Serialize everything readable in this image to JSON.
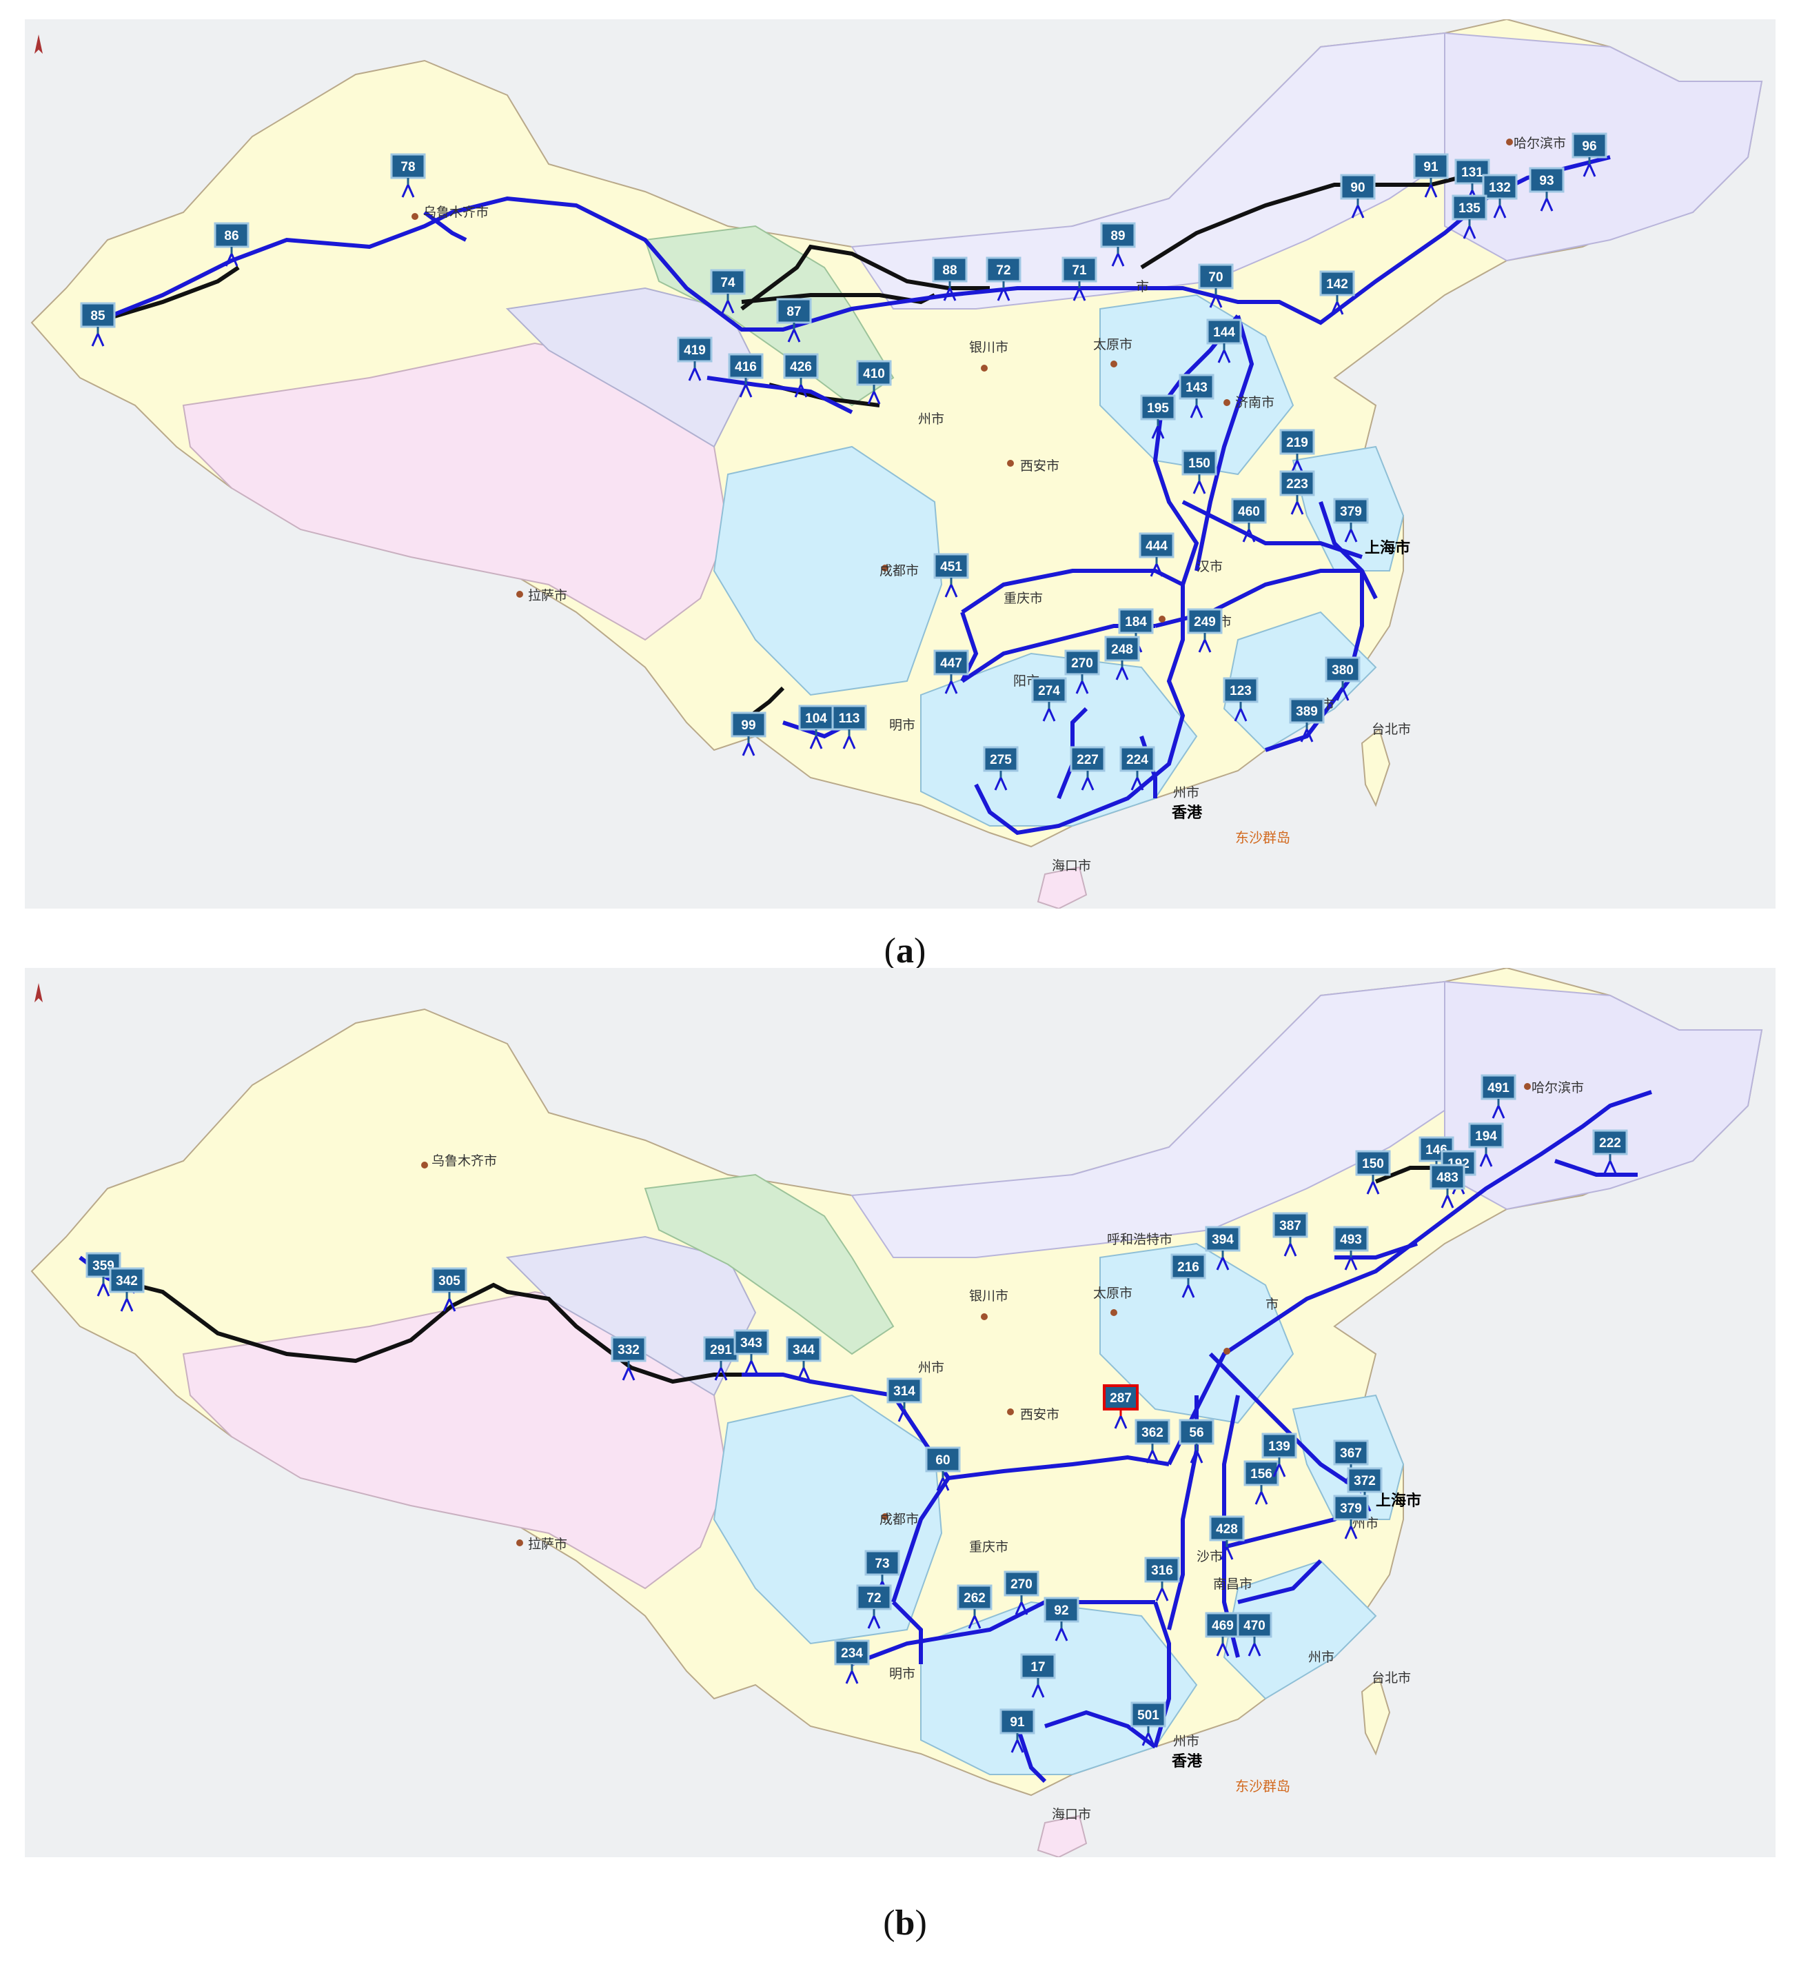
{
  "captions": {
    "a_letter": "a",
    "b_letter": "b"
  },
  "cities": {
    "urumqi": "乌鲁木齐市",
    "harbin": "哈尔滨市",
    "beijing": "市",
    "yinchuan": "银川市",
    "taiyuan": "太原市",
    "jinan": "济南市",
    "xian": "西安市",
    "lanzhou": "州市",
    "chengdu": "成都市",
    "chongqing": "重庆市",
    "wuhan": "汉市",
    "nanchang": "南昌市",
    "shanghai": "上海市",
    "lhasa": "拉萨市",
    "kunming": "明市",
    "guiyang": "阳市",
    "guangzhou": "州市",
    "hongkong": "香港",
    "fuzhou": "州市",
    "taipei": "台北市",
    "dongsha": "东沙群岛",
    "haikou": "海口市",
    "hohhot": "呼和浩特市",
    "changsha": "沙市",
    "hangzhou": "州市"
  },
  "map_a": {
    "markers": [
      "85",
      "86",
      "78",
      "74",
      "87",
      "419",
      "416",
      "426",
      "410",
      "88",
      "72",
      "71",
      "89",
      "90",
      "91",
      "131",
      "132",
      "135",
      "93",
      "96",
      "70",
      "142",
      "144",
      "143",
      "195",
      "150",
      "219",
      "223",
      "379",
      "460",
      "444",
      "451",
      "447",
      "249",
      "270",
      "274",
      "275",
      "227",
      "224",
      "123",
      "380",
      "389",
      "99",
      "104",
      "113",
      "184",
      "248"
    ]
  },
  "map_b": {
    "markers": [
      "359",
      "342",
      "305",
      "332",
      "291",
      "343",
      "344",
      "314",
      "60",
      "73",
      "72",
      "287",
      "362",
      "234",
      "262",
      "270",
      "92",
      "17",
      "91",
      "501",
      "469",
      "470",
      "428",
      "56",
      "156",
      "139",
      "367",
      "372",
      "379",
      "387",
      "394",
      "216",
      "493",
      "146",
      "194",
      "192",
      "483",
      "150",
      "491",
      "222",
      "316"
    ]
  }
}
